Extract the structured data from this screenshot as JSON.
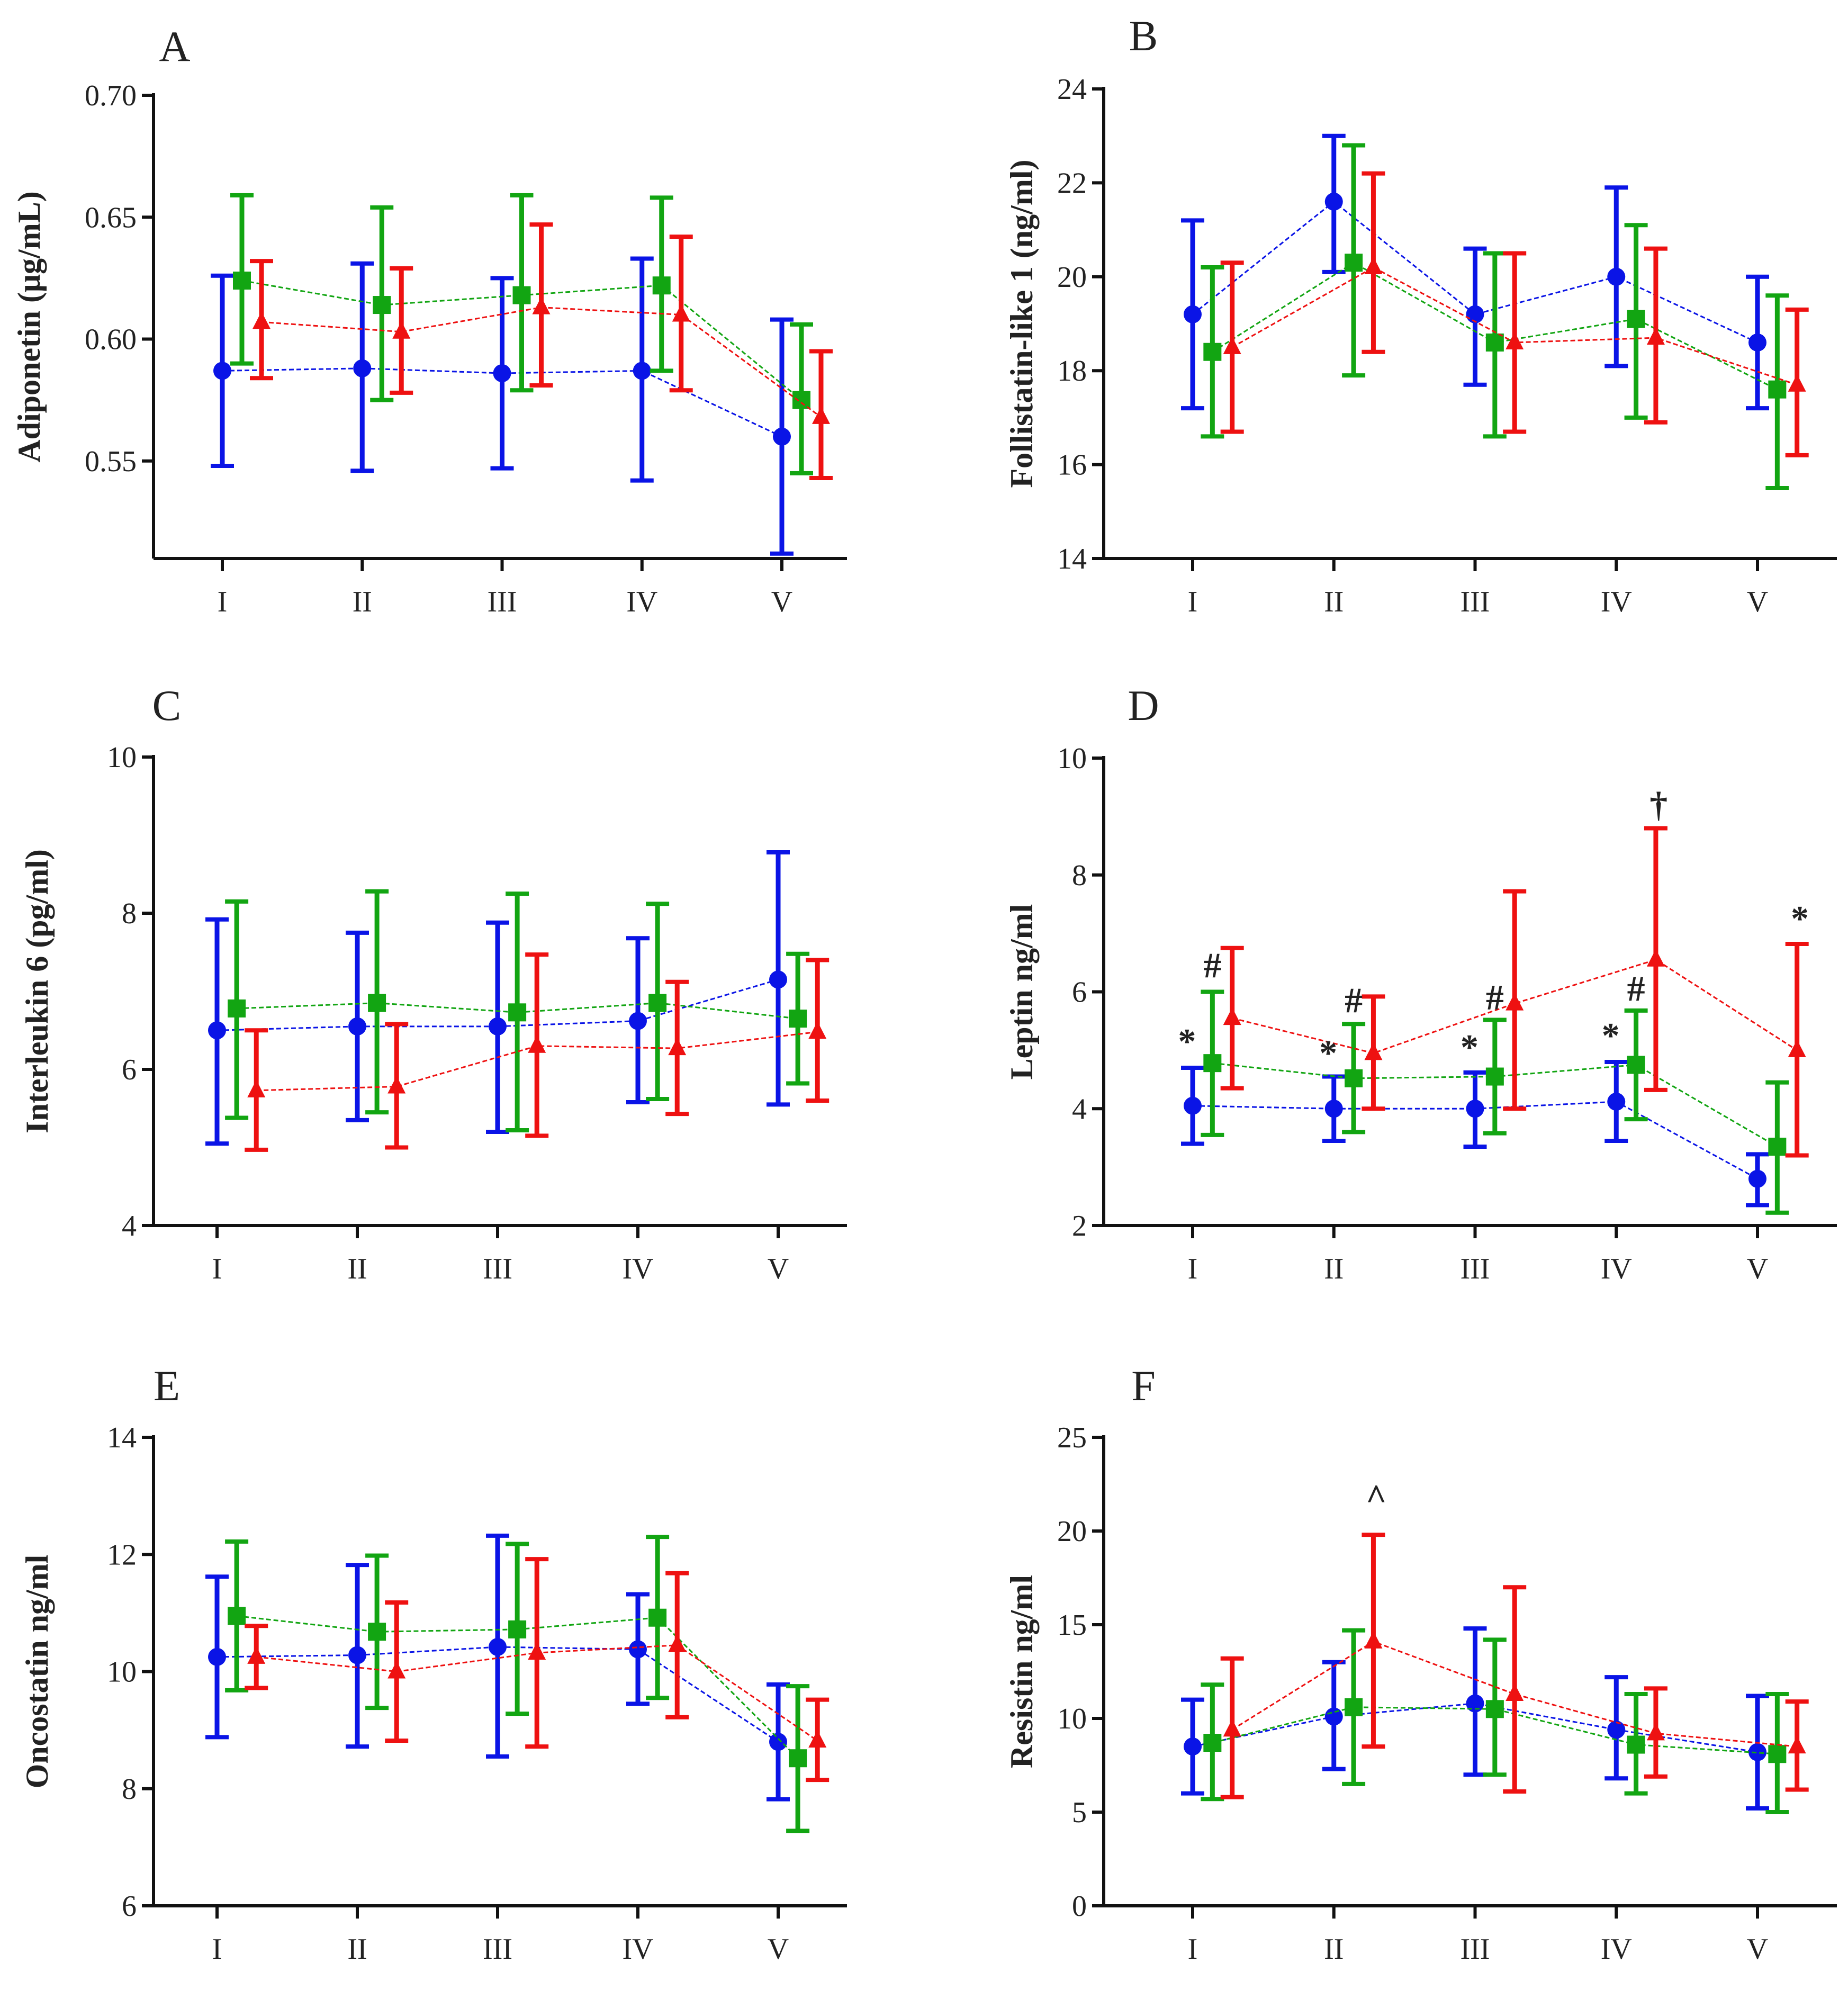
{
  "chart_data": [
    {
      "panel": "A",
      "type": "line",
      "ylabel": "Adiponetin (μg/mL)",
      "ylim": [
        0.51,
        0.7
      ],
      "yticks": [
        0.55,
        0.6,
        0.65,
        0.7
      ],
      "ytick_labels": [
        "0.55",
        "0.60",
        "0.65",
        "0.70"
      ],
      "categories": [
        "I",
        "II",
        "III",
        "IV",
        "V"
      ],
      "series": [
        {
          "name": "blue",
          "color": "#0a14e6",
          "marker": "circle",
          "values": [
            0.587,
            0.588,
            0.586,
            0.587,
            0.56
          ],
          "err_low": [
            0.548,
            0.546,
            0.547,
            0.542,
            0.512
          ],
          "err_high": [
            0.626,
            0.631,
            0.625,
            0.633,
            0.608
          ]
        },
        {
          "name": "green",
          "color": "#12a512",
          "marker": "square",
          "values": [
            0.624,
            0.614,
            0.618,
            0.622,
            0.575
          ],
          "err_low": [
            0.59,
            0.575,
            0.579,
            0.587,
            0.545
          ],
          "err_high": [
            0.659,
            0.654,
            0.659,
            0.658,
            0.606
          ]
        },
        {
          "name": "red",
          "color": "#ee1111",
          "marker": "triangle",
          "values": [
            0.607,
            0.603,
            0.613,
            0.61,
            0.568
          ],
          "err_low": [
            0.584,
            0.578,
            0.581,
            0.579,
            0.543
          ],
          "err_high": [
            0.632,
            0.629,
            0.647,
            0.642,
            0.595
          ]
        }
      ],
      "annotations": []
    },
    {
      "panel": "B",
      "type": "line",
      "ylabel": "Follistatin-like 1 (ng/ml)",
      "ylim": [
        14,
        24
      ],
      "yticks": [
        14,
        16,
        18,
        20,
        22,
        24
      ],
      "ytick_labels": [
        "14",
        "16",
        "18",
        "20",
        "22",
        "24"
      ],
      "categories": [
        "I",
        "II",
        "III",
        "IV",
        "V"
      ],
      "series": [
        {
          "name": "blue",
          "color": "#0a14e6",
          "marker": "circle",
          "values": [
            19.2,
            21.6,
            19.2,
            20.0,
            18.6
          ],
          "err_low": [
            17.2,
            20.1,
            17.7,
            18.1,
            17.2
          ],
          "err_high": [
            21.2,
            23.0,
            20.6,
            21.9,
            20.0
          ]
        },
        {
          "name": "green",
          "color": "#12a512",
          "marker": "square",
          "values": [
            18.4,
            20.3,
            18.6,
            19.1,
            17.6
          ],
          "err_low": [
            16.6,
            17.9,
            16.6,
            17.0,
            15.5
          ],
          "err_high": [
            20.2,
            22.8,
            20.5,
            21.1,
            19.6
          ]
        },
        {
          "name": "red",
          "color": "#ee1111",
          "marker": "triangle",
          "values": [
            18.5,
            20.2,
            18.6,
            18.7,
            17.7
          ],
          "err_low": [
            16.7,
            18.4,
            16.7,
            16.9,
            16.2
          ],
          "err_high": [
            20.3,
            22.2,
            20.5,
            20.6,
            19.3
          ]
        }
      ],
      "annotations": []
    },
    {
      "panel": "C",
      "type": "line",
      "ylabel": "Interleukin 6 (pg/ml)",
      "ylim": [
        4,
        10
      ],
      "yticks": [
        4,
        6,
        8,
        10
      ],
      "ytick_labels": [
        "4",
        "6",
        "8",
        "10"
      ],
      "categories": [
        "I",
        "II",
        "III",
        "IV",
        "V"
      ],
      "series": [
        {
          "name": "blue",
          "color": "#0a14e6",
          "marker": "circle",
          "values": [
            6.5,
            6.55,
            6.55,
            6.62,
            7.15
          ],
          "err_low": [
            5.05,
            5.35,
            5.2,
            5.58,
            5.55
          ],
          "err_high": [
            7.92,
            7.75,
            7.88,
            7.68,
            8.78
          ]
        },
        {
          "name": "green",
          "color": "#12a512",
          "marker": "square",
          "values": [
            6.78,
            6.85,
            6.73,
            6.85,
            6.65
          ],
          "err_low": [
            5.38,
            5.45,
            5.22,
            5.62,
            5.82
          ],
          "err_high": [
            8.15,
            8.28,
            8.25,
            8.12,
            7.48
          ]
        },
        {
          "name": "red",
          "color": "#ee1111",
          "marker": "triangle",
          "values": [
            5.73,
            5.78,
            6.3,
            6.27,
            6.48
          ],
          "err_low": [
            4.97,
            5.0,
            5.15,
            5.43,
            5.6
          ],
          "err_high": [
            6.5,
            6.58,
            7.47,
            7.12,
            7.4
          ]
        }
      ],
      "annotations": []
    },
    {
      "panel": "D",
      "type": "line",
      "ylabel": "Leptin ng/ml",
      "ylim": [
        2,
        10
      ],
      "yticks": [
        2,
        4,
        6,
        8,
        10
      ],
      "ytick_labels": [
        "2",
        "4",
        "6",
        "8",
        "10"
      ],
      "categories": [
        "I",
        "II",
        "III",
        "IV",
        "V"
      ],
      "series": [
        {
          "name": "blue",
          "color": "#0a14e6",
          "marker": "circle",
          "values": [
            4.05,
            4.0,
            4.0,
            4.12,
            2.8
          ],
          "err_low": [
            3.4,
            3.45,
            3.35,
            3.45,
            2.35
          ],
          "err_high": [
            4.7,
            4.55,
            4.62,
            4.8,
            3.22
          ]
        },
        {
          "name": "green",
          "color": "#12a512",
          "marker": "square",
          "values": [
            4.78,
            4.52,
            4.55,
            4.75,
            3.35
          ],
          "err_low": [
            3.55,
            3.6,
            3.58,
            3.82,
            2.22
          ],
          "err_high": [
            6.0,
            5.45,
            5.52,
            5.68,
            4.45
          ]
        },
        {
          "name": "red",
          "color": "#ee1111",
          "marker": "triangle",
          "values": [
            5.55,
            4.95,
            5.8,
            6.55,
            5.0
          ],
          "err_low": [
            4.35,
            4.0,
            4.0,
            4.32,
            3.2
          ],
          "err_high": [
            6.75,
            5.92,
            7.72,
            8.8,
            6.82
          ]
        }
      ],
      "annotations": [
        {
          "text": "*",
          "category": 0,
          "offset": -0.04,
          "y": 5.15
        },
        {
          "text": "#",
          "category": 0,
          "offset": 0.14,
          "y": 6.45
        },
        {
          "text": "*",
          "category": 1,
          "offset": -0.04,
          "y": 4.95
        },
        {
          "text": "#",
          "category": 1,
          "offset": 0.14,
          "y": 5.85
        },
        {
          "text": "*",
          "category": 2,
          "offset": -0.04,
          "y": 5.05
        },
        {
          "text": "#",
          "category": 2,
          "offset": 0.14,
          "y": 5.9
        },
        {
          "text": "*",
          "category": 3,
          "offset": -0.04,
          "y": 5.25
        },
        {
          "text": "#",
          "category": 3,
          "offset": 0.14,
          "y": 6.05
        },
        {
          "text": "†",
          "category": 3,
          "offset": 0.3,
          "y": 9.2
        },
        {
          "text": "*",
          "category": 4,
          "offset": 0.3,
          "y": 7.25
        }
      ]
    },
    {
      "panel": "E",
      "type": "line",
      "ylabel": "Oncostatin ng/ml",
      "ylim": [
        6,
        14
      ],
      "yticks": [
        6,
        8,
        10,
        12,
        14
      ],
      "ytick_labels": [
        "6",
        "8",
        "10",
        "12",
        "14"
      ],
      "categories": [
        "I",
        "II",
        "III",
        "IV",
        "V"
      ],
      "series": [
        {
          "name": "blue",
          "color": "#0a14e6",
          "marker": "circle",
          "values": [
            10.25,
            10.28,
            10.42,
            10.38,
            8.8
          ],
          "err_low": [
            8.88,
            8.72,
            8.55,
            9.45,
            7.82
          ],
          "err_high": [
            11.62,
            11.82,
            12.32,
            11.32,
            9.78
          ]
        },
        {
          "name": "green",
          "color": "#12a512",
          "marker": "square",
          "values": [
            10.95,
            10.68,
            10.72,
            10.92,
            8.52
          ],
          "err_low": [
            9.68,
            9.38,
            9.28,
            9.55,
            7.28
          ],
          "err_high": [
            12.22,
            11.98,
            12.18,
            12.3,
            9.75
          ]
        },
        {
          "name": "red",
          "color": "#ee1111",
          "marker": "triangle",
          "values": [
            10.25,
            10.0,
            10.32,
            10.45,
            8.82
          ],
          "err_low": [
            9.72,
            8.82,
            8.72,
            9.22,
            8.15
          ],
          "err_high": [
            10.78,
            11.18,
            11.92,
            11.68,
            9.52
          ]
        }
      ],
      "annotations": []
    },
    {
      "panel": "F",
      "type": "line",
      "ylabel": "Resistin ng/ml",
      "ylim": [
        0,
        25
      ],
      "yticks": [
        0,
        5,
        10,
        15,
        20,
        25
      ],
      "ytick_labels": [
        "0",
        "5",
        "10",
        "15",
        "20",
        "25"
      ],
      "categories": [
        "I",
        "II",
        "III",
        "IV",
        "V"
      ],
      "series": [
        {
          "name": "blue",
          "color": "#0a14e6",
          "marker": "circle",
          "values": [
            8.5,
            10.1,
            10.8,
            9.4,
            8.2
          ],
          "err_low": [
            6.0,
            7.3,
            7.0,
            6.8,
            5.2
          ],
          "err_high": [
            11.0,
            13.0,
            14.8,
            12.2,
            11.2
          ]
        },
        {
          "name": "green",
          "color": "#12a512",
          "marker": "square",
          "values": [
            8.7,
            10.6,
            10.5,
            8.6,
            8.1
          ],
          "err_low": [
            5.7,
            6.5,
            7.0,
            6.0,
            5.0
          ],
          "err_high": [
            11.8,
            14.7,
            14.2,
            11.3,
            11.3
          ]
        },
        {
          "name": "red",
          "color": "#ee1111",
          "marker": "triangle",
          "values": [
            9.4,
            14.1,
            11.3,
            9.2,
            8.5
          ],
          "err_low": [
            5.8,
            8.5,
            6.1,
            6.9,
            6.2
          ],
          "err_high": [
            13.2,
            19.8,
            17.0,
            11.6,
            10.9
          ]
        }
      ],
      "annotations": [
        {
          "text": "^",
          "category": 1,
          "offset": 0.3,
          "y": 21.8
        }
      ]
    }
  ]
}
